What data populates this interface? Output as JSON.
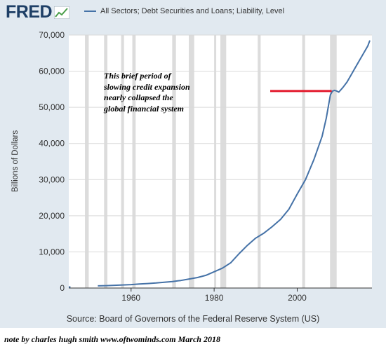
{
  "header": {
    "brand": "FRED",
    "legend_label": "All Sectors; Debt Securities and Loans; Liability, Level"
  },
  "annotation": {
    "lines": [
      "This brief period of",
      "slowing credit expansion",
      "nearly collapsed the",
      "global financial system"
    ],
    "marker_x_range": [
      1993.5,
      2008.3
    ],
    "marker_y": 54500,
    "marker_color": "#e31a2c"
  },
  "source_text": "Source: Board of Governors of the Federal Reserve System (US)",
  "note_text": "note by charles hugh smith  www.oftwominds.com  March 2018",
  "colors": {
    "background": "#e1e9f0",
    "plot_background": "#ffffff",
    "line": "#4572a7",
    "recession": "#dcdcdc",
    "brand": "#1e3f66"
  },
  "chart_data": {
    "type": "line",
    "title": "",
    "xlabel": "",
    "ylabel": "Billions of Dollars",
    "xlim": [
      1945,
      2018
    ],
    "ylim": [
      0,
      70000
    ],
    "x_ticks": [
      {
        "value": 1960,
        "label": "1960"
      },
      {
        "value": 1980,
        "label": "1980"
      },
      {
        "value": 2000,
        "label": "2000"
      }
    ],
    "y_ticks": [
      {
        "value": 0,
        "label": "0"
      },
      {
        "value": 10000,
        "label": "10,000"
      },
      {
        "value": 20000,
        "label": "20,000"
      },
      {
        "value": 30000,
        "label": "30,000"
      },
      {
        "value": 40000,
        "label": "40,000"
      },
      {
        "value": 50000,
        "label": "50,000"
      },
      {
        "value": 60000,
        "label": "60,000"
      },
      {
        "value": 70000,
        "label": "70,000"
      }
    ],
    "grid": true,
    "legend": "top",
    "recessions": [
      [
        1948.9,
        1949.8
      ],
      [
        1953.5,
        1954.3
      ],
      [
        1957.6,
        1958.3
      ],
      [
        1960.3,
        1961.1
      ],
      [
        1969.9,
        1970.8
      ],
      [
        1973.9,
        1975.2
      ],
      [
        1980.0,
        1980.5
      ],
      [
        1981.5,
        1982.9
      ],
      [
        1990.5,
        1991.2
      ],
      [
        2001.2,
        2001.9
      ],
      [
        2007.9,
        2009.5
      ]
    ],
    "series": [
      {
        "name": "All Sectors; Debt Securities and Loans; Liability, Level",
        "points": [
          [
            1945.0,
            300
          ],
          [
            1945.4,
            300
          ],
          [
            1952.0,
            600
          ],
          [
            1954,
            650
          ],
          [
            1956,
            750
          ],
          [
            1958,
            850
          ],
          [
            1960,
            950
          ],
          [
            1962,
            1100
          ],
          [
            1964,
            1250
          ],
          [
            1966,
            1400
          ],
          [
            1968,
            1600
          ],
          [
            1970,
            1800
          ],
          [
            1972,
            2100
          ],
          [
            1974,
            2500
          ],
          [
            1976,
            2900
          ],
          [
            1978,
            3500
          ],
          [
            1980,
            4500
          ],
          [
            1982,
            5500
          ],
          [
            1984,
            7000
          ],
          [
            1986,
            9500
          ],
          [
            1988,
            11800
          ],
          [
            1990,
            13800
          ],
          [
            1992,
            15200
          ],
          [
            1994,
            17000
          ],
          [
            1996,
            19000
          ],
          [
            1998,
            21800
          ],
          [
            2000,
            26000
          ],
          [
            2002,
            30000
          ],
          [
            2004,
            35500
          ],
          [
            2006,
            42000
          ],
          [
            2007,
            47000
          ],
          [
            2008,
            53500
          ],
          [
            2008.5,
            54500
          ],
          [
            2009,
            54700
          ],
          [
            2009.5,
            54500
          ],
          [
            2010,
            54200
          ],
          [
            2011,
            55500
          ],
          [
            2012,
            57000
          ],
          [
            2013,
            59000
          ],
          [
            2014,
            61000
          ],
          [
            2015,
            63000
          ],
          [
            2016,
            65000
          ],
          [
            2017,
            67000
          ],
          [
            2017.5,
            68500
          ]
        ]
      }
    ]
  }
}
